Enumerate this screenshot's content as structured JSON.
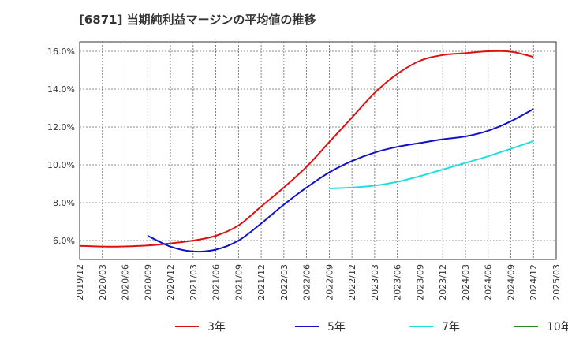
{
  "chart_data": {
    "type": "line",
    "title": "[6871]  当期純利益マージンの平均値の推移",
    "xlabel": "",
    "ylabel": "",
    "ylim": [
      5.0,
      16.5
    ],
    "yticks": [
      6.0,
      8.0,
      10.0,
      12.0,
      14.0,
      16.0
    ],
    "ytick_labels": [
      "6.0%",
      "8.0%",
      "10.0%",
      "12.0%",
      "14.0%",
      "16.0%"
    ],
    "xlim": [
      "2019-12",
      "2025-03"
    ],
    "xtick_labels": [
      "2019/12",
      "2020/03",
      "2020/06",
      "2020/09",
      "2020/12",
      "2021/03",
      "2021/06",
      "2021/09",
      "2021/12",
      "2022/03",
      "2022/06",
      "2022/09",
      "2022/12",
      "2023/03",
      "2023/06",
      "2023/09",
      "2023/12",
      "2024/03",
      "2024/06",
      "2024/09",
      "2024/12",
      "2025/03"
    ],
    "grid": true,
    "legend_position": "bottom",
    "series": [
      {
        "name": "3年",
        "color": "#dd1111",
        "points": [
          [
            "2019-12",
            5.72
          ],
          [
            "2020-03",
            5.68
          ],
          [
            "2020-06",
            5.69
          ],
          [
            "2020-09",
            5.74
          ],
          [
            "2020-12",
            5.85
          ],
          [
            "2021-03",
            6.0
          ],
          [
            "2021-06",
            6.25
          ],
          [
            "2021-09",
            6.8
          ],
          [
            "2021-12",
            7.8
          ],
          [
            "2022-03",
            8.8
          ],
          [
            "2022-06",
            9.9
          ],
          [
            "2022-09",
            11.2
          ],
          [
            "2022-12",
            12.5
          ],
          [
            "2023-03",
            13.8
          ],
          [
            "2023-06",
            14.8
          ],
          [
            "2023-09",
            15.5
          ],
          [
            "2023-12",
            15.8
          ],
          [
            "2024-03",
            15.9
          ],
          [
            "2024-06",
            16.0
          ],
          [
            "2024-09",
            15.98
          ],
          [
            "2024-12",
            15.7
          ]
        ]
      },
      {
        "name": "5年",
        "color": "#1111cc",
        "points": [
          [
            "2020-09",
            6.25
          ],
          [
            "2020-12",
            5.68
          ],
          [
            "2021-03",
            5.42
          ],
          [
            "2021-06",
            5.52
          ],
          [
            "2021-09",
            6.0
          ],
          [
            "2021-12",
            6.9
          ],
          [
            "2022-03",
            7.9
          ],
          [
            "2022-06",
            8.8
          ],
          [
            "2022-09",
            9.6
          ],
          [
            "2022-12",
            10.2
          ],
          [
            "2023-03",
            10.65
          ],
          [
            "2023-06",
            10.95
          ],
          [
            "2023-09",
            11.15
          ],
          [
            "2023-12",
            11.35
          ],
          [
            "2024-03",
            11.5
          ],
          [
            "2024-06",
            11.8
          ],
          [
            "2024-09",
            12.3
          ],
          [
            "2024-12",
            12.95
          ]
        ]
      },
      {
        "name": "7年",
        "color": "#22dddd",
        "points": [
          [
            "2022-09",
            8.75
          ],
          [
            "2022-12",
            8.8
          ],
          [
            "2023-03",
            8.9
          ],
          [
            "2023-06",
            9.1
          ],
          [
            "2023-09",
            9.4
          ],
          [
            "2023-12",
            9.75
          ],
          [
            "2024-03",
            10.1
          ],
          [
            "2024-06",
            10.45
          ],
          [
            "2024-09",
            10.85
          ],
          [
            "2024-12",
            11.25
          ]
        ]
      },
      {
        "name": "10年",
        "color": "#228822",
        "points": []
      }
    ]
  }
}
